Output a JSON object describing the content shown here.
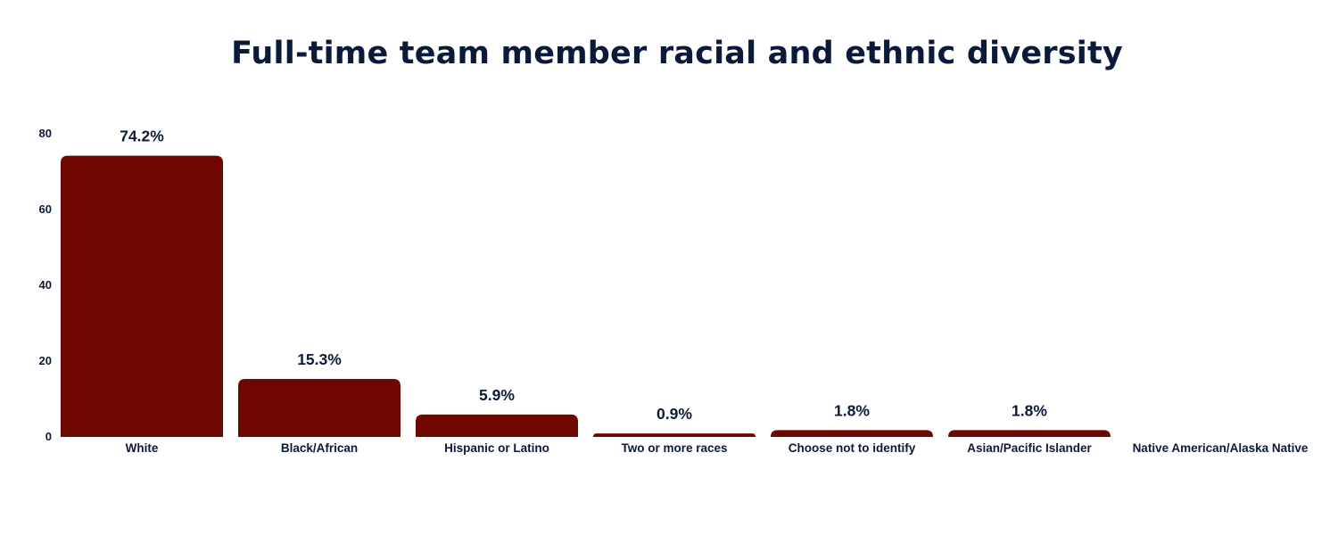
{
  "colors": {
    "bar": "#700600",
    "text": "#0c1a3a"
  },
  "chart_data": {
    "type": "bar",
    "title": "Full-time team member racial and ethnic diversity",
    "categories": [
      "White",
      "Black/African",
      "Hispanic or Latino",
      "Two or more races",
      "Choose not to identify",
      "Asian/Pacific Islander",
      "Native American/Alaska Native"
    ],
    "values": [
      74.2,
      15.3,
      5.9,
      0.9,
      1.8,
      1.8,
      0
    ],
    "data_labels": [
      "74.2%",
      "15.3%",
      "5.9%",
      "0.9%",
      "1.8%",
      "1.8%",
      ""
    ],
    "xlabel": "",
    "ylabel": "",
    "ylim": [
      0,
      80
    ],
    "yticks": [
      0,
      20,
      40,
      60,
      80
    ],
    "grid": false,
    "legend": "none"
  }
}
